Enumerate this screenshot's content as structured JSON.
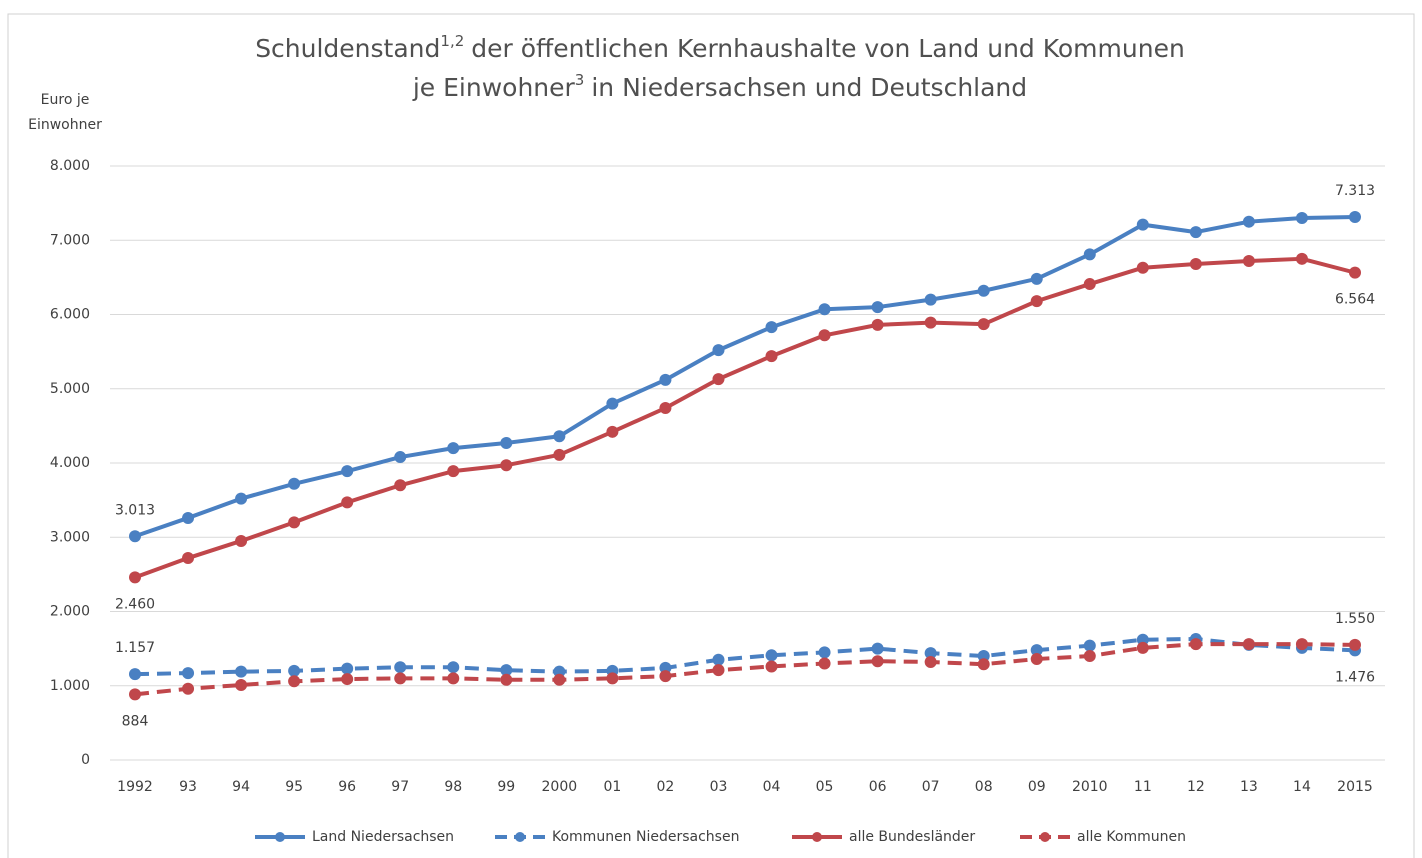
{
  "chart_data": {
    "type": "line",
    "title": [
      [
        "Schuldenstand",
        "1,2",
        "der öffentlichen Kernhaushalte von Land und Kommunen"
      ],
      [
        "je Einwohner",
        "3",
        "in Niedersachsen und Deutschland"
      ]
    ],
    "ylabel": [
      "Euro je",
      "Einwohner"
    ],
    "categories": [
      "1992",
      "93",
      "94",
      "95",
      "96",
      "97",
      "98",
      "99",
      "2000",
      "01",
      "02",
      "03",
      "04",
      "05",
      "06",
      "07",
      "08",
      "09",
      "2010",
      "11",
      "12",
      "13",
      "14",
      "2015"
    ],
    "ylim": [
      0,
      8000
    ],
    "yticks": [
      0,
      {
        "value": 1000,
        "label": "1.000"
      },
      {
        "value": 2000,
        "label": "2.000"
      },
      {
        "value": 3000,
        "label": "3.000"
      },
      {
        "value": 4000,
        "label": "4.000"
      },
      {
        "value": 5000,
        "label": "5.000"
      },
      {
        "value": 6000,
        "label": "6.000"
      },
      {
        "value": 7000,
        "label": "7.000"
      },
      {
        "value": 8000,
        "label": "8.000"
      }
    ],
    "grid": true,
    "legend": "bottom",
    "series": [
      {
        "name": "Land Niedersachsen",
        "color": "#4a80c2",
        "dashed": false,
        "values": [
          3013,
          3260,
          3520,
          3720,
          3890,
          4080,
          4200,
          4270,
          4360,
          4800,
          5120,
          5520,
          5830,
          6070,
          6100,
          6200,
          6320,
          6480,
          6810,
          7210,
          7110,
          7250,
          7300,
          7313
        ],
        "value_labels": [
          "3.013",
          null,
          null,
          null,
          null,
          null,
          null,
          null,
          null,
          null,
          null,
          null,
          null,
          null,
          null,
          null,
          null,
          null,
          null,
          null,
          null,
          null,
          null,
          "7.313"
        ]
      },
      {
        "name": "Kommunen Niedersachsen",
        "color": "#4a80c2",
        "dashed": true,
        "values": [
          1157,
          1170,
          1190,
          1200,
          1230,
          1250,
          1250,
          1210,
          1190,
          1200,
          1240,
          1350,
          1410,
          1450,
          1500,
          1440,
          1400,
          1480,
          1540,
          1620,
          1630,
          1550,
          1510,
          1476
        ],
        "value_labels": [
          "1.157",
          null,
          null,
          null,
          null,
          null,
          null,
          null,
          null,
          null,
          null,
          null,
          null,
          null,
          null,
          null,
          null,
          null,
          null,
          null,
          null,
          null,
          null,
          "1.476"
        ]
      },
      {
        "name": "alle Bundesländer",
        "color": "#c0474b",
        "dashed": false,
        "values": [
          2460,
          2720,
          2950,
          3200,
          3470,
          3700,
          3890,
          3970,
          4110,
          4420,
          4740,
          5130,
          5440,
          5720,
          5860,
          5890,
          5870,
          6180,
          6410,
          6630,
          6680,
          6720,
          6750,
          6564
        ],
        "value_labels": [
          "2.460",
          null,
          null,
          null,
          null,
          null,
          null,
          null,
          null,
          null,
          null,
          null,
          null,
          null,
          null,
          null,
          null,
          null,
          null,
          null,
          null,
          null,
          null,
          "6.564"
        ]
      },
      {
        "name": "alle Kommunen",
        "color": "#c0474b",
        "dashed": true,
        "values": [
          884,
          960,
          1010,
          1060,
          1090,
          1100,
          1100,
          1080,
          1080,
          1100,
          1130,
          1210,
          1260,
          1300,
          1330,
          1320,
          1290,
          1360,
          1400,
          1510,
          1560,
          1560,
          1560,
          1550
        ],
        "value_labels": [
          "884",
          null,
          null,
          null,
          null,
          null,
          null,
          null,
          null,
          null,
          null,
          null,
          null,
          null,
          null,
          null,
          null,
          null,
          null,
          null,
          null,
          null,
          null,
          "1.550"
        ]
      }
    ]
  }
}
